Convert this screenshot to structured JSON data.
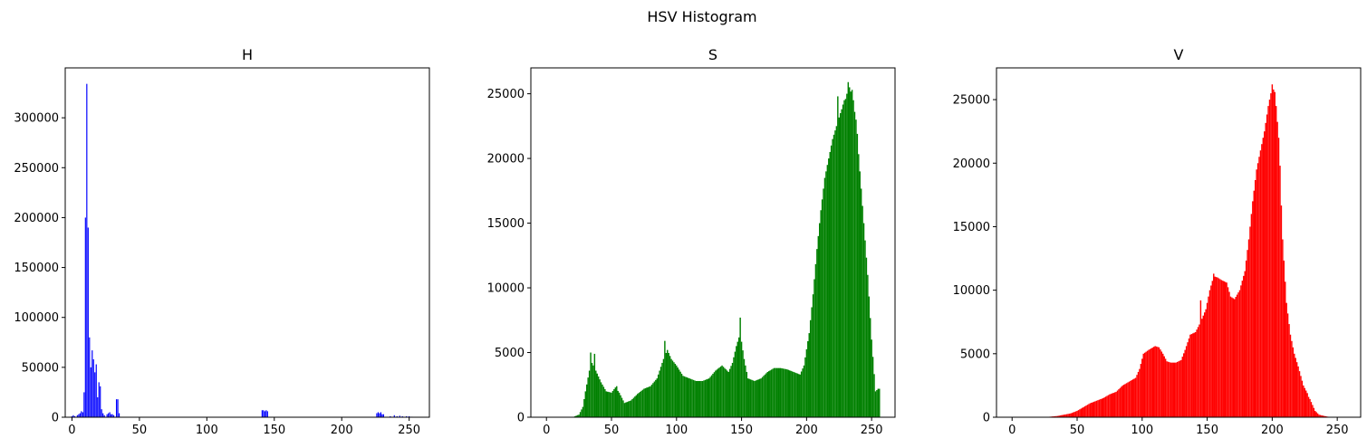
{
  "figure": {
    "title": "HSV Histogram"
  },
  "chart_data": [
    {
      "type": "bar",
      "title": "H",
      "color": "#0000ff",
      "xlim": [
        -5,
        265
      ],
      "ylim": [
        0,
        350000
      ],
      "xticks": [
        0,
        50,
        100,
        150,
        200,
        250
      ],
      "yticks": [
        0,
        50000,
        100000,
        150000,
        200000,
        250000,
        300000
      ],
      "bins": [
        {
          "x": 0,
          "y": 1000
        },
        {
          "x": 1,
          "y": 2000
        },
        {
          "x": 2,
          "y": 1000
        },
        {
          "x": 4,
          "y": 2000
        },
        {
          "x": 5,
          "y": 3000
        },
        {
          "x": 6,
          "y": 4000
        },
        {
          "x": 7,
          "y": 6000
        },
        {
          "x": 8,
          "y": 5000
        },
        {
          "x": 9,
          "y": 25000
        },
        {
          "x": 10,
          "y": 200000
        },
        {
          "x": 11,
          "y": 334000
        },
        {
          "x": 12,
          "y": 190000
        },
        {
          "x": 13,
          "y": 80000
        },
        {
          "x": 14,
          "y": 50000
        },
        {
          "x": 15,
          "y": 67000
        },
        {
          "x": 16,
          "y": 58000
        },
        {
          "x": 17,
          "y": 45000
        },
        {
          "x": 18,
          "y": 53000
        },
        {
          "x": 19,
          "y": 20000
        },
        {
          "x": 20,
          "y": 35000
        },
        {
          "x": 21,
          "y": 31000
        },
        {
          "x": 22,
          "y": 8000
        },
        {
          "x": 23,
          "y": 4000
        },
        {
          "x": 24,
          "y": 2000
        },
        {
          "x": 26,
          "y": 3000
        },
        {
          "x": 27,
          "y": 4000
        },
        {
          "x": 28,
          "y": 5000
        },
        {
          "x": 29,
          "y": 3000
        },
        {
          "x": 30,
          "y": 3000
        },
        {
          "x": 31,
          "y": 2000
        },
        {
          "x": 33,
          "y": 18000
        },
        {
          "x": 34,
          "y": 18000
        },
        {
          "x": 35,
          "y": 4000
        },
        {
          "x": 141,
          "y": 7000
        },
        {
          "x": 142,
          "y": 7000
        },
        {
          "x": 143,
          "y": 6000
        },
        {
          "x": 144,
          "y": 7000
        },
        {
          "x": 145,
          "y": 6000
        },
        {
          "x": 226,
          "y": 4000
        },
        {
          "x": 227,
          "y": 5000
        },
        {
          "x": 228,
          "y": 4000
        },
        {
          "x": 229,
          "y": 5000
        },
        {
          "x": 230,
          "y": 3000
        },
        {
          "x": 231,
          "y": 3000
        },
        {
          "x": 236,
          "y": 1000
        },
        {
          "x": 239,
          "y": 2000
        },
        {
          "x": 241,
          "y": 1000
        },
        {
          "x": 243,
          "y": 1500
        },
        {
          "x": 245,
          "y": 1000
        },
        {
          "x": 248,
          "y": 1000
        },
        {
          "x": 250,
          "y": 1000
        },
        {
          "x": 252,
          "y": 500
        }
      ]
    },
    {
      "type": "bar",
      "title": "S",
      "color": "#008000",
      "xlim": [
        -12,
        268
      ],
      "ylim": [
        0,
        27000
      ],
      "xticks": [
        0,
        50,
        100,
        150,
        200,
        250
      ],
      "yticks": [
        0,
        5000,
        10000,
        15000,
        20000,
        25000
      ],
      "profile": [
        [
          0,
          0
        ],
        [
          20,
          0
        ],
        [
          25,
          200
        ],
        [
          28,
          800
        ],
        [
          30,
          2000
        ],
        [
          33,
          3600
        ],
        [
          35,
          4200
        ],
        [
          38,
          3600
        ],
        [
          42,
          2700
        ],
        [
          46,
          2000
        ],
        [
          50,
          1900
        ],
        [
          53,
          2300
        ],
        [
          56,
          1900
        ],
        [
          60,
          1100
        ],
        [
          65,
          1300
        ],
        [
          70,
          1800
        ],
        [
          75,
          2200
        ],
        [
          80,
          2400
        ],
        [
          85,
          3000
        ],
        [
          90,
          4500
        ],
        [
          93,
          5200
        ],
        [
          96,
          4500
        ],
        [
          100,
          4000
        ],
        [
          105,
          3200
        ],
        [
          110,
          3000
        ],
        [
          115,
          2800
        ],
        [
          120,
          2800
        ],
        [
          125,
          3000
        ],
        [
          130,
          3600
        ],
        [
          135,
          4000
        ],
        [
          140,
          3500
        ],
        [
          143,
          4200
        ],
        [
          146,
          5500
        ],
        [
          149,
          6500
        ],
        [
          152,
          4500
        ],
        [
          155,
          3000
        ],
        [
          160,
          2800
        ],
        [
          165,
          3000
        ],
        [
          170,
          3500
        ],
        [
          175,
          3800
        ],
        [
          180,
          3800
        ],
        [
          185,
          3700
        ],
        [
          190,
          3500
        ],
        [
          195,
          3300
        ],
        [
          198,
          4000
        ],
        [
          202,
          6500
        ],
        [
          205,
          9500
        ],
        [
          208,
          13000
        ],
        [
          211,
          16000
        ],
        [
          214,
          18500
        ],
        [
          217,
          20000
        ],
        [
          220,
          21500
        ],
        [
          223,
          22500
        ],
        [
          226,
          23500
        ],
        [
          229,
          24500
        ],
        [
          231,
          25000
        ],
        [
          233,
          25500
        ],
        [
          236,
          24500
        ],
        [
          238,
          23000
        ],
        [
          241,
          19000
        ],
        [
          244,
          15000
        ],
        [
          247,
          11000
        ],
        [
          250,
          6000
        ],
        [
          253,
          2000
        ],
        [
          255,
          2200
        ]
      ],
      "spikes": [
        {
          "x": 34,
          "y": 5000
        },
        {
          "x": 37,
          "y": 4900
        },
        {
          "x": 54,
          "y": 2400
        },
        {
          "x": 91,
          "y": 5900
        },
        {
          "x": 149,
          "y": 7700
        },
        {
          "x": 224,
          "y": 24800
        },
        {
          "x": 227,
          "y": 23800
        },
        {
          "x": 230,
          "y": 24600
        },
        {
          "x": 232,
          "y": 25900
        },
        {
          "x": 235,
          "y": 25300
        },
        {
          "x": 237,
          "y": 23600
        },
        {
          "x": 239,
          "y": 21900
        },
        {
          "x": 256,
          "y": 2200
        }
      ]
    },
    {
      "type": "bar",
      "title": "V",
      "color": "#ff0000",
      "xlim": [
        -12,
        268
      ],
      "ylim": [
        0,
        27500
      ],
      "xticks": [
        0,
        50,
        100,
        150,
        200,
        250
      ],
      "yticks": [
        0,
        5000,
        10000,
        15000,
        20000,
        25000
      ],
      "profile": [
        [
          0,
          0
        ],
        [
          25,
          0
        ],
        [
          30,
          50
        ],
        [
          35,
          100
        ],
        [
          40,
          200
        ],
        [
          45,
          300
        ],
        [
          50,
          500
        ],
        [
          55,
          800
        ],
        [
          60,
          1100
        ],
        [
          65,
          1300
        ],
        [
          70,
          1500
        ],
        [
          75,
          1800
        ],
        [
          80,
          2000
        ],
        [
          85,
          2500
        ],
        [
          90,
          2800
        ],
        [
          95,
          3100
        ],
        [
          98,
          3800
        ],
        [
          101,
          5000
        ],
        [
          105,
          5300
        ],
        [
          110,
          5600
        ],
        [
          113,
          5500
        ],
        [
          116,
          5000
        ],
        [
          119,
          4400
        ],
        [
          122,
          4300
        ],
        [
          126,
          4300
        ],
        [
          130,
          4500
        ],
        [
          133,
          5300
        ],
        [
          137,
          6500
        ],
        [
          141,
          6700
        ],
        [
          145,
          7500
        ],
        [
          149,
          8500
        ],
        [
          152,
          10000
        ],
        [
          155,
          11100
        ],
        [
          158,
          11000
        ],
        [
          161,
          10800
        ],
        [
          165,
          10600
        ],
        [
          168,
          9500
        ],
        [
          171,
          9300
        ],
        [
          175,
          10000
        ],
        [
          179,
          11500
        ],
        [
          182,
          14000
        ],
        [
          185,
          17000
        ],
        [
          188,
          19500
        ],
        [
          191,
          21000
        ],
        [
          194,
          22500
        ],
        [
          197,
          24500
        ],
        [
          199,
          25500
        ],
        [
          201,
          25800
        ],
        [
          203,
          24500
        ],
        [
          205,
          22000
        ],
        [
          208,
          14000
        ],
        [
          211,
          9000
        ],
        [
          214,
          6500
        ],
        [
          217,
          5000
        ],
        [
          220,
          4000
        ],
        [
          224,
          2500
        ],
        [
          227,
          1900
        ],
        [
          230,
          1200
        ],
        [
          233,
          500
        ],
        [
          236,
          200
        ],
        [
          240,
          100
        ],
        [
          245,
          0
        ]
      ],
      "spikes": [
        {
          "x": 145,
          "y": 9200
        },
        {
          "x": 155,
          "y": 11300
        },
        {
          "x": 200,
          "y": 26200
        },
        {
          "x": 202,
          "y": 25600
        },
        {
          "x": 206,
          "y": 19800
        },
        {
          "x": 228,
          "y": 1600
        }
      ]
    }
  ]
}
